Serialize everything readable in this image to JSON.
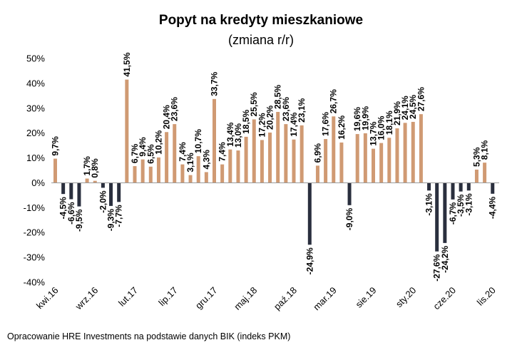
{
  "title": "Popyt na kredyty mieszkaniowe",
  "subtitle": "(zmiana r/r)",
  "footer": "Opracowanie HRE Investments na podstawie danych BIK (indeks PKM)",
  "colors": {
    "positive": "#d09a73",
    "negative": "#2a2f3e",
    "axis": "#9a9a9a"
  },
  "chart_data": {
    "type": "bar",
    "ylim": [
      -40,
      50
    ],
    "yticks": [
      "50%",
      "40%",
      "30%",
      "20%",
      "10%",
      "0%",
      "-10%",
      "-20%",
      "-30%",
      "-40%"
    ],
    "ytick_values": [
      50,
      40,
      30,
      20,
      10,
      0,
      -10,
      -20,
      -30,
      -40
    ],
    "xtick_labels": [
      "kwi.16",
      "wrz.16",
      "lut.17",
      "lip.17",
      "gru.17",
      "maj.18",
      "paź.18",
      "mar.19",
      "sie.19",
      "sty.20",
      "cze.20",
      "lis.20"
    ],
    "xtick_index": [
      0,
      5,
      10,
      15,
      20,
      25,
      30,
      35,
      40,
      45,
      50,
      55
    ],
    "values": [
      9.7,
      -4.5,
      -6.6,
      -9.5,
      1.7,
      0.8,
      -2.0,
      -9.3,
      -7.7,
      41.5,
      6.7,
      9.4,
      6.5,
      10.2,
      20.4,
      23.6,
      7.4,
      3.1,
      10.7,
      4.3,
      33.7,
      7.4,
      13.4,
      13.0,
      18.5,
      25.5,
      17.2,
      20.2,
      28.5,
      23.6,
      17.4,
      23.1,
      -24.9,
      6.9,
      17.6,
      26.7,
      16.2,
      -9.0,
      19.6,
      19.9,
      13.7,
      16.0,
      18.1,
      21.9,
      24.1,
      24.5,
      27.6,
      -3.1,
      -27.6,
      -24.2,
      -6.7,
      -3.5,
      -3.1,
      5.3,
      8.1,
      -4.4
    ],
    "labels": [
      "9,7%",
      "-4,5%",
      "-6,6%",
      "-9,5%",
      "1,7%",
      "0,8%",
      "-2,0%",
      "-9,3%",
      "-7,7%",
      "41,5%",
      "6,7%",
      "9,4%",
      "6,5%",
      "10,2%",
      "20,4%",
      "23,6%",
      "7,4%",
      "3,1%",
      "10,7%",
      "4,3%",
      "33,7%",
      "7,4%",
      "13,4%",
      "13,0%",
      "18,5%",
      "25,5%",
      "17,2%",
      "20,2%",
      "28,5%",
      "23,6%",
      "17,4%",
      "23,1%",
      "-24,9%",
      "6,9%",
      "17,6%",
      "26,7%",
      "16,2%",
      "-9,0%",
      "19,6%",
      "19,9%",
      "13,7%",
      "16,0%",
      "18,1%",
      "21,9%",
      "24,1%",
      "24,5%",
      "27,6%",
      "-3,1%",
      "-27,6%",
      "-24,2%",
      "-6,7%",
      "-3,5%",
      "-3,1%",
      "5,3%",
      "8,1%",
      "-4,4%"
    ]
  }
}
